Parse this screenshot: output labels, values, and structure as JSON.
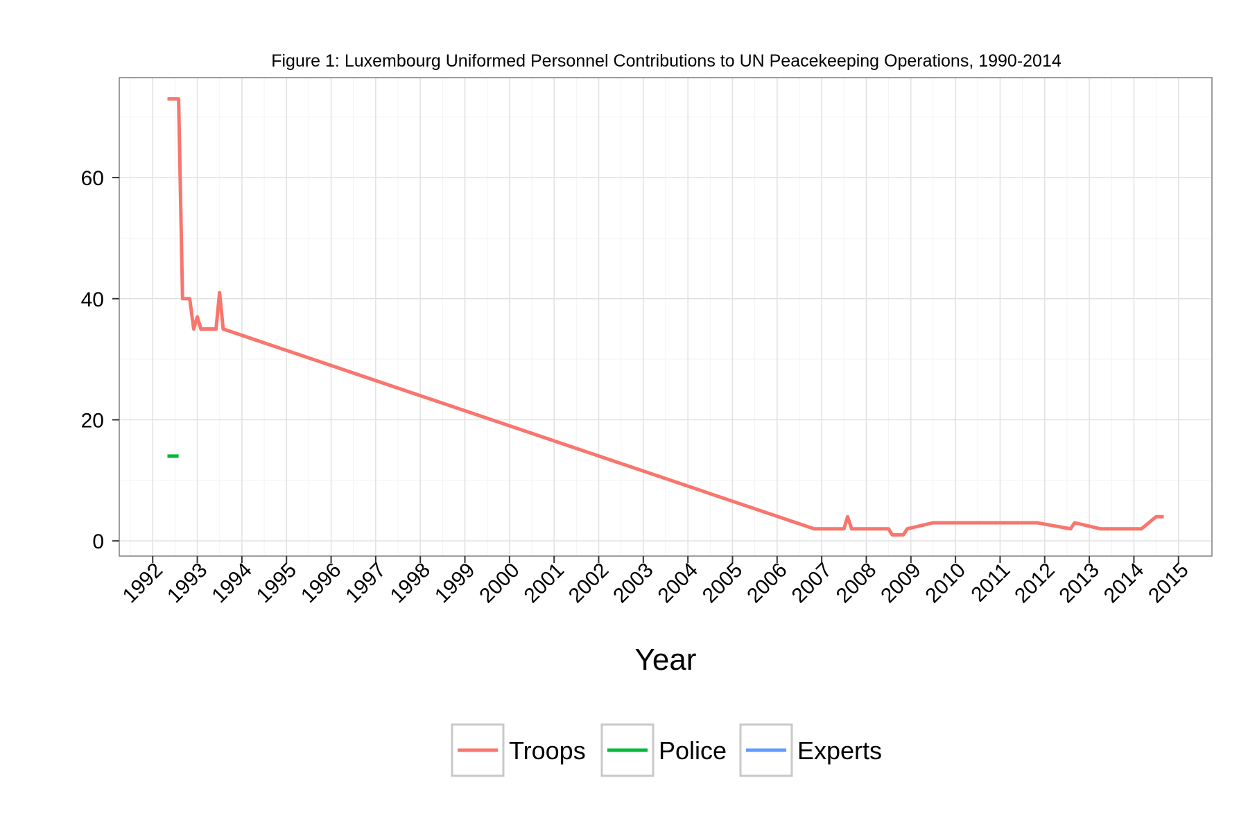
{
  "chart_data": {
    "type": "line",
    "title": "Figure 1: Luxembourg Uniformed Personnel Contributions to UN Peacekeeping Operations, 1990-2014",
    "xlabel": "Year",
    "ylabel": "",
    "xlim": [
      1991.25,
      2015.75
    ],
    "ylim": [
      -2.5,
      76.5
    ],
    "x_ticks": [
      "1992",
      "1993",
      "1994",
      "1995",
      "1996",
      "1997",
      "1998",
      "1999",
      "2000",
      "2001",
      "2002",
      "2003",
      "2004",
      "2005",
      "2006",
      "2007",
      "2008",
      "2009",
      "2010",
      "2011",
      "2012",
      "2013",
      "2014",
      "2015"
    ],
    "y_ticks": [
      "0",
      "20",
      "40",
      "60"
    ],
    "grid": true,
    "legend_position": "bottom",
    "series": [
      {
        "name": "Troops",
        "color": "#f8766d",
        "points": [
          [
            1992.33,
            73
          ],
          [
            1992.58,
            73
          ],
          [
            1992.67,
            40
          ],
          [
            1992.83,
            40
          ],
          [
            1992.92,
            35
          ],
          [
            1993.0,
            37
          ],
          [
            1993.08,
            35
          ],
          [
            1993.42,
            35
          ],
          [
            1993.5,
            41
          ],
          [
            1993.58,
            35
          ],
          [
            2006.83,
            2
          ],
          [
            2007.5,
            2
          ],
          [
            2007.58,
            4
          ],
          [
            2007.67,
            2
          ],
          [
            2008.5,
            2
          ],
          [
            2008.58,
            1
          ],
          [
            2008.83,
            1
          ],
          [
            2008.92,
            2
          ],
          [
            2009.5,
            3
          ],
          [
            2011.83,
            3
          ],
          [
            2012.58,
            2
          ],
          [
            2012.67,
            3
          ],
          [
            2013.25,
            2
          ],
          [
            2014.17,
            2
          ],
          [
            2014.5,
            4
          ],
          [
            2014.67,
            4
          ]
        ]
      },
      {
        "name": "Police",
        "color": "#00ba38",
        "points": [
          [
            1992.33,
            14
          ],
          [
            1992.58,
            14
          ]
        ]
      },
      {
        "name": "Experts",
        "color": "#619cff",
        "points": []
      }
    ]
  }
}
